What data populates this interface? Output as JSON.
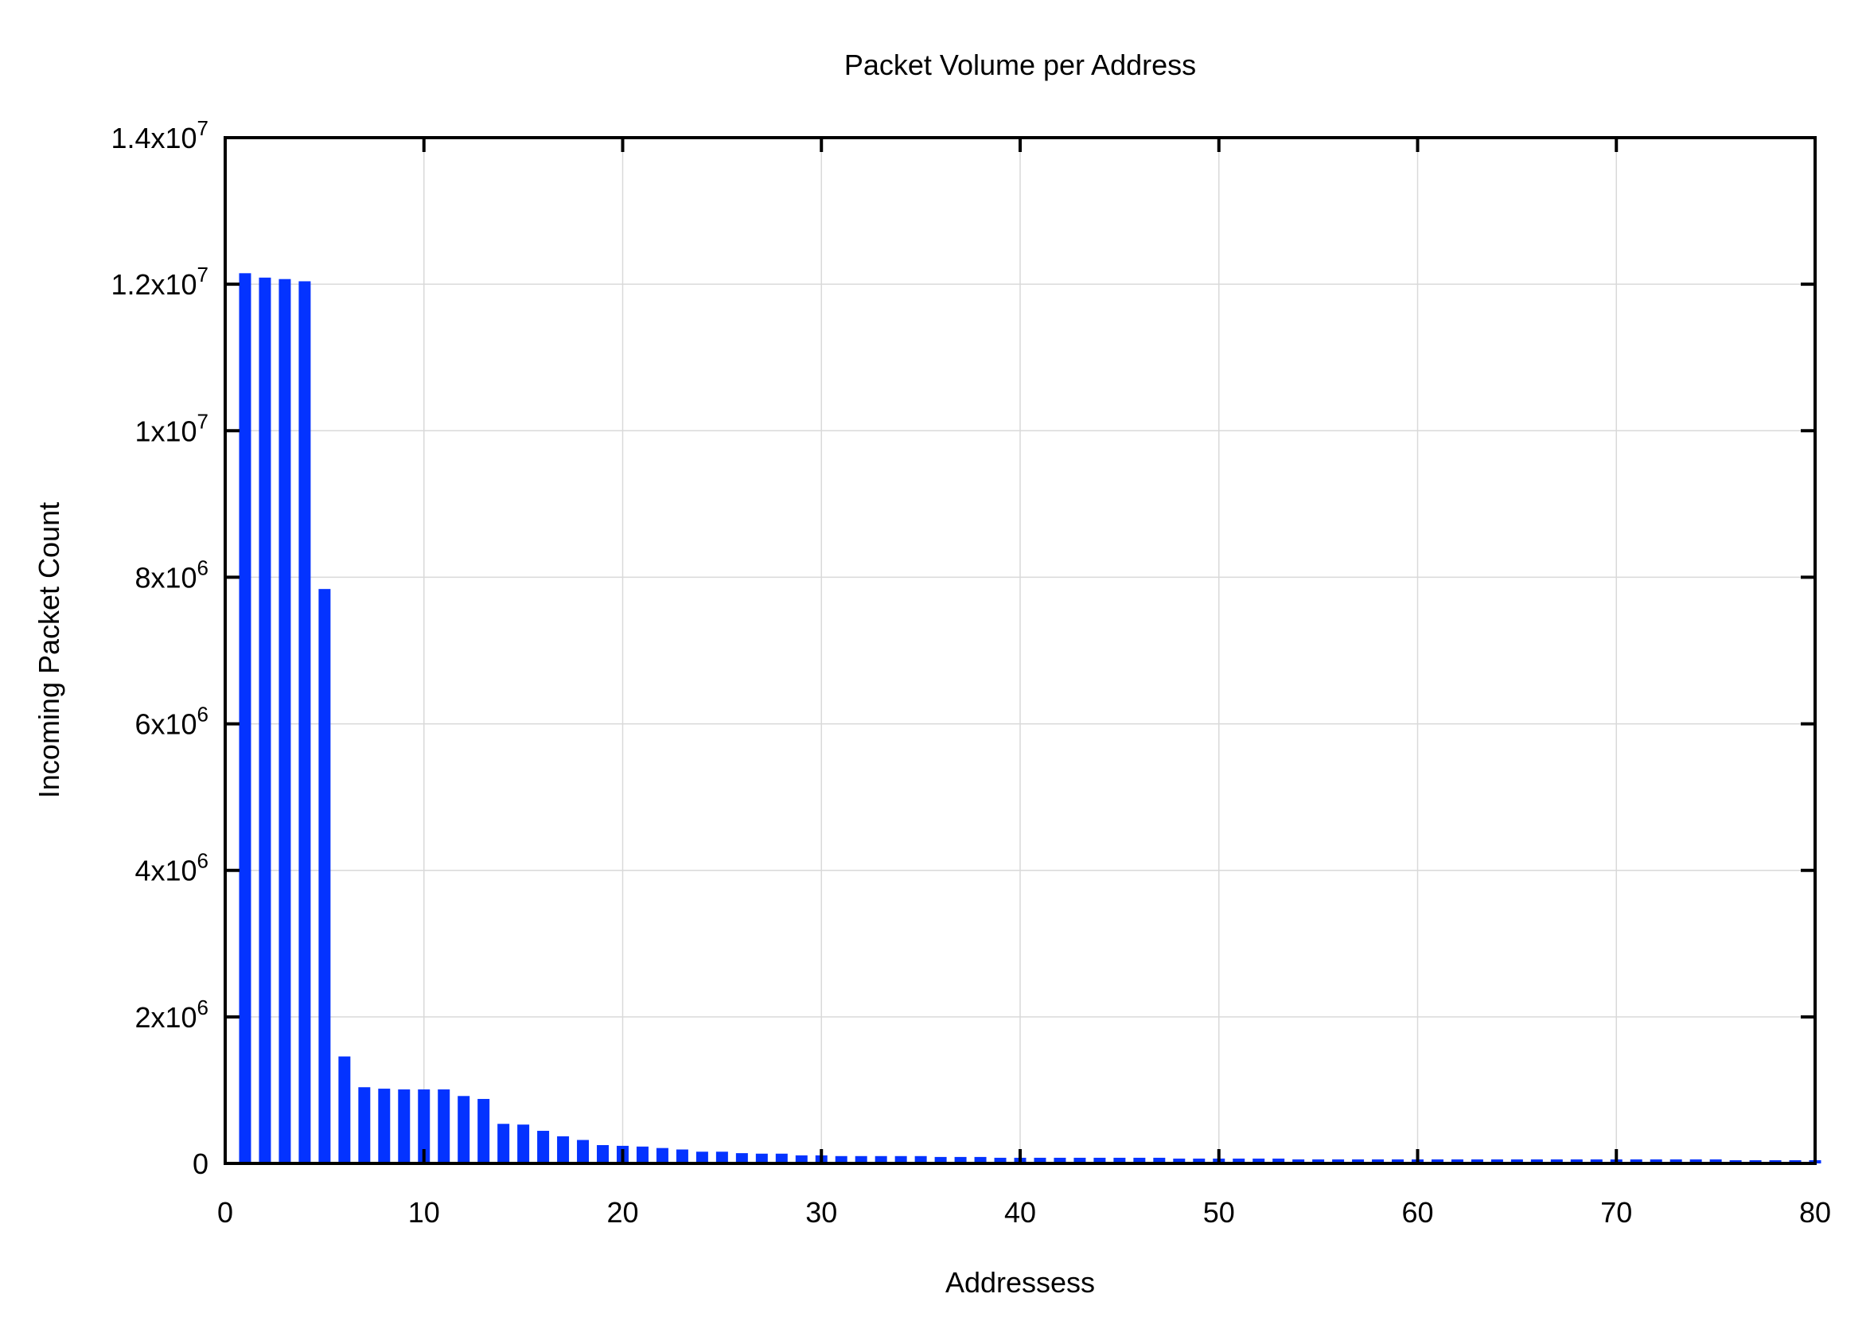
{
  "chart_data": {
    "type": "bar",
    "title": "Packet Volume per Address",
    "xlabel": "Addressess",
    "ylabel": "Incoming Packet Count",
    "xlim": [
      0,
      80
    ],
    "ylim": [
      0,
      14000000
    ],
    "grid": true,
    "bar_color": "#0433ff",
    "x_ticks": [
      0,
      10,
      20,
      30,
      40,
      50,
      60,
      70,
      80
    ],
    "x_tick_labels": [
      "0",
      "10",
      "20",
      "30",
      "40",
      "50",
      "60",
      "70",
      "80"
    ],
    "y_ticks": [
      0,
      2000000,
      4000000,
      6000000,
      8000000,
      10000000,
      12000000,
      14000000
    ],
    "y_tick_labels": [
      {
        "base": "0",
        "exp": ""
      },
      {
        "base": "2x10",
        "exp": "6"
      },
      {
        "base": "4x10",
        "exp": "6"
      },
      {
        "base": "6x10",
        "exp": "6"
      },
      {
        "base": "8x10",
        "exp": "6"
      },
      {
        "base": "1x10",
        "exp": "7"
      },
      {
        "base": "1.2x10",
        "exp": "7"
      },
      {
        "base": "1.4x10",
        "exp": "7"
      }
    ],
    "x": [
      1,
      2,
      3,
      4,
      5,
      6,
      7,
      8,
      9,
      10,
      11,
      12,
      13,
      14,
      15,
      16,
      17,
      18,
      19,
      20,
      21,
      22,
      23,
      24,
      25,
      26,
      27,
      28,
      29,
      30,
      31,
      32,
      33,
      34,
      35,
      36,
      37,
      38,
      39,
      40,
      41,
      42,
      43,
      44,
      45,
      46,
      47,
      48,
      49,
      50,
      51,
      52,
      53,
      54,
      55,
      56,
      57,
      58,
      59,
      60,
      61,
      62,
      63,
      64,
      65,
      66,
      67,
      68,
      69,
      70,
      71,
      72,
      73,
      74,
      75,
      76,
      77,
      78,
      79,
      80
    ],
    "values": [
      12150000,
      12090000,
      12070000,
      12040000,
      7840000,
      1460000,
      1040000,
      1020000,
      1010000,
      1010000,
      1010000,
      920000,
      880000,
      540000,
      530000,
      445000,
      370000,
      320000,
      250000,
      240000,
      230000,
      210000,
      190000,
      160000,
      160000,
      140000,
      133000,
      133000,
      110000,
      110000,
      100000,
      100000,
      100000,
      100000,
      100000,
      88000,
      88000,
      88000,
      77000,
      77000,
      77000,
      77000,
      77000,
      77000,
      77000,
      77000,
      77000,
      66000,
      66000,
      66000,
      66000,
      66000,
      66000,
      55000,
      55000,
      55000,
      55000,
      55000,
      55000,
      55000,
      55000,
      55000,
      55000,
      55000,
      55000,
      55000,
      55000,
      55000,
      55000,
      55000,
      55000,
      55000,
      55000,
      55000,
      55000,
      44000,
      44000,
      44000,
      44000,
      44000
    ]
  }
}
